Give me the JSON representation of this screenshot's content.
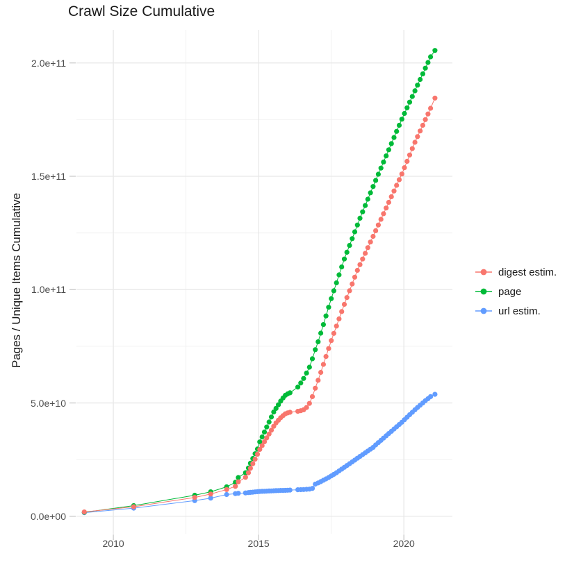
{
  "chart_data": {
    "type": "line",
    "title": "Crawl Size Cumulative",
    "xlabel": "",
    "ylabel": "Pages / Unique Items Cumulative",
    "legend_position": "right",
    "grid": "major-and-minor",
    "value_unit": "1e9 (points stored as [year, billions])",
    "axes": {
      "x_domain": [
        2008.73,
        2021.67
      ],
      "y_domain": [
        -7.7,
        214.6
      ],
      "x_ticks": [
        {
          "label": "2010",
          "value": 2010
        },
        {
          "label": "2015",
          "value": 2015
        },
        {
          "label": "2020",
          "value": 2020
        }
      ],
      "x_minor": [
        2012.5,
        2017.5
      ],
      "y_ticks": [
        {
          "label": "0.0e+00",
          "value": 0
        },
        {
          "label": "5.0e+10",
          "value": 50
        },
        {
          "label": "1.0e+11",
          "value": 100
        },
        {
          "label": "1.5e+11",
          "value": 150
        },
        {
          "label": "2.0e+11",
          "value": 200
        }
      ],
      "y_minor": [
        25,
        75,
        125,
        175
      ]
    },
    "colors": {
      "digest": "#F8766D",
      "page": "#00BA38",
      "url": "#619CFF"
    },
    "series": [
      {
        "name": "digest estim.",
        "color": "#F8766D",
        "points": [
          [
            2009,
            1.9
          ],
          [
            2010.7,
            4.2
          ],
          [
            2012.8,
            8.3
          ],
          [
            2013.35,
            9.8
          ],
          [
            2013.9,
            11.8
          ],
          [
            2014.2,
            13.2
          ],
          [
            2014.3,
            15.2
          ],
          [
            2014.55,
            17.2
          ],
          [
            2014.65,
            19.2
          ],
          [
            2014.72,
            21.2
          ],
          [
            2014.8,
            23.2
          ],
          [
            2014.88,
            25.2
          ],
          [
            2014.96,
            27.4
          ],
          [
            2015.04,
            29.5
          ],
          [
            2015.12,
            31.2
          ],
          [
            2015.2,
            32.9
          ],
          [
            2015.28,
            34.6
          ],
          [
            2015.36,
            36.3
          ],
          [
            2015.44,
            38
          ],
          [
            2015.52,
            39.7
          ],
          [
            2015.6,
            41.2
          ],
          [
            2015.68,
            42.4
          ],
          [
            2015.76,
            43.5
          ],
          [
            2015.84,
            44.4
          ],
          [
            2015.92,
            45.2
          ],
          [
            2016,
            45.6
          ],
          [
            2016.08,
            45.9
          ],
          [
            2016.35,
            46.3
          ],
          [
            2016.45,
            46.6
          ],
          [
            2016.55,
            47
          ],
          [
            2016.65,
            48
          ],
          [
            2016.75,
            49.8
          ],
          [
            2016.85,
            52.8
          ],
          [
            2016.95,
            56.5
          ],
          [
            2017.05,
            60
          ],
          [
            2017.14,
            63.5
          ],
          [
            2017.23,
            67
          ],
          [
            2017.32,
            70.5
          ],
          [
            2017.41,
            74
          ],
          [
            2017.5,
            77.5
          ],
          [
            2017.59,
            80.7
          ],
          [
            2017.68,
            83.9
          ],
          [
            2017.77,
            87.1
          ],
          [
            2017.86,
            90.3
          ],
          [
            2017.95,
            93.5
          ],
          [
            2018.04,
            96.5
          ],
          [
            2018.13,
            99.5
          ],
          [
            2018.22,
            102.5
          ],
          [
            2018.31,
            105.5
          ],
          [
            2018.4,
            108.5
          ],
          [
            2018.49,
            111
          ],
          [
            2018.58,
            113.5
          ],
          [
            2018.67,
            116
          ],
          [
            2018.76,
            118.5
          ],
          [
            2018.85,
            121
          ],
          [
            2018.94,
            123.5
          ],
          [
            2019.03,
            126
          ],
          [
            2019.12,
            128.5
          ],
          [
            2019.21,
            131
          ],
          [
            2019.3,
            133.5
          ],
          [
            2019.39,
            136
          ],
          [
            2019.48,
            138.5
          ],
          [
            2019.57,
            141
          ],
          [
            2019.66,
            143.5
          ],
          [
            2019.75,
            146
          ],
          [
            2019.84,
            148.5
          ],
          [
            2019.93,
            151
          ],
          [
            2020.02,
            153.8
          ],
          [
            2020.11,
            156.6
          ],
          [
            2020.2,
            159.4
          ],
          [
            2020.29,
            162.2
          ],
          [
            2020.38,
            165
          ],
          [
            2020.47,
            167.5
          ],
          [
            2020.56,
            170
          ],
          [
            2020.65,
            172.5
          ],
          [
            2020.74,
            175
          ],
          [
            2020.83,
            177.5
          ],
          [
            2020.92,
            180
          ],
          [
            2021.07,
            184.5
          ]
        ]
      },
      {
        "name": "page",
        "color": "#00BA38",
        "points": [
          [
            2009,
            1.75
          ],
          [
            2010.7,
            4.7
          ],
          [
            2012.8,
            9.3
          ],
          [
            2013.35,
            10.8
          ],
          [
            2013.9,
            13
          ],
          [
            2014.2,
            15
          ],
          [
            2014.3,
            17.1
          ],
          [
            2014.55,
            19.2
          ],
          [
            2014.65,
            21.3
          ],
          [
            2014.72,
            23.4
          ],
          [
            2014.8,
            25.5
          ],
          [
            2014.88,
            27.6
          ],
          [
            2014.96,
            29.7
          ],
          [
            2015.04,
            32.8
          ],
          [
            2015.12,
            35
          ],
          [
            2015.2,
            37.2
          ],
          [
            2015.28,
            39.4
          ],
          [
            2015.36,
            41.6
          ],
          [
            2015.44,
            43.8
          ],
          [
            2015.52,
            46
          ],
          [
            2015.6,
            47.6
          ],
          [
            2015.68,
            49.2
          ],
          [
            2015.76,
            50.8
          ],
          [
            2015.84,
            52.2
          ],
          [
            2015.92,
            53.4
          ],
          [
            2016,
            54
          ],
          [
            2016.08,
            54.5
          ],
          [
            2016.35,
            57
          ],
          [
            2016.45,
            58.8
          ],
          [
            2016.55,
            60.8
          ],
          [
            2016.65,
            63.2
          ],
          [
            2016.75,
            65.8
          ],
          [
            2016.85,
            69.5
          ],
          [
            2016.95,
            73.5
          ],
          [
            2017.05,
            77
          ],
          [
            2017.14,
            80.8
          ],
          [
            2017.23,
            84.6
          ],
          [
            2017.32,
            88.4
          ],
          [
            2017.41,
            92.2
          ],
          [
            2017.5,
            96
          ],
          [
            2017.59,
            99.5
          ],
          [
            2017.68,
            103
          ],
          [
            2017.77,
            106.5
          ],
          [
            2017.86,
            110
          ],
          [
            2017.95,
            113.5
          ],
          [
            2018.04,
            116.5
          ],
          [
            2018.13,
            119.5
          ],
          [
            2018.22,
            122.5
          ],
          [
            2018.31,
            125.5
          ],
          [
            2018.4,
            128.5
          ],
          [
            2018.49,
            131.5
          ],
          [
            2018.58,
            134.3
          ],
          [
            2018.67,
            137.1
          ],
          [
            2018.76,
            139.9
          ],
          [
            2018.85,
            142.7
          ],
          [
            2018.94,
            145.5
          ],
          [
            2019.03,
            148.2
          ],
          [
            2019.12,
            150.9
          ],
          [
            2019.21,
            153.6
          ],
          [
            2019.3,
            156.3
          ],
          [
            2019.39,
            159
          ],
          [
            2019.48,
            161.7
          ],
          [
            2019.57,
            164.4
          ],
          [
            2019.66,
            167.1
          ],
          [
            2019.75,
            169.8
          ],
          [
            2019.84,
            172.5
          ],
          [
            2019.93,
            175.2
          ],
          [
            2020.02,
            177.7
          ],
          [
            2020.11,
            180.2
          ],
          [
            2020.2,
            182.7
          ],
          [
            2020.29,
            185.2
          ],
          [
            2020.38,
            187.7
          ],
          [
            2020.47,
            190.2
          ],
          [
            2020.56,
            192.7
          ],
          [
            2020.65,
            195.2
          ],
          [
            2020.74,
            197.7
          ],
          [
            2020.83,
            200.2
          ],
          [
            2020.92,
            202.7
          ],
          [
            2021.07,
            205.5
          ]
        ]
      },
      {
        "name": "url estim.",
        "color": "#619CFF",
        "points": [
          [
            2009,
            1.6
          ],
          [
            2010.7,
            3.6
          ],
          [
            2012.8,
            6.9
          ],
          [
            2013.35,
            8
          ],
          [
            2013.9,
            9.6
          ],
          [
            2014.2,
            10
          ],
          [
            2014.3,
            10.15
          ],
          [
            2014.55,
            10.3
          ],
          [
            2014.65,
            10.45
          ],
          [
            2014.72,
            10.55
          ],
          [
            2014.8,
            10.65
          ],
          [
            2014.88,
            10.75
          ],
          [
            2014.96,
            10.85
          ],
          [
            2015.04,
            10.95
          ],
          [
            2015.12,
            11
          ],
          [
            2015.2,
            11.05
          ],
          [
            2015.28,
            11.1
          ],
          [
            2015.36,
            11.15
          ],
          [
            2015.44,
            11.2
          ],
          [
            2015.52,
            11.25
          ],
          [
            2015.6,
            11.3
          ],
          [
            2015.68,
            11.35
          ],
          [
            2015.76,
            11.4
          ],
          [
            2015.84,
            11.42
          ],
          [
            2015.92,
            11.45
          ],
          [
            2016,
            11.5
          ],
          [
            2016.08,
            11.55
          ],
          [
            2016.35,
            11.7
          ],
          [
            2016.45,
            11.75
          ],
          [
            2016.55,
            11.8
          ],
          [
            2016.65,
            11.9
          ],
          [
            2016.75,
            12
          ],
          [
            2016.85,
            12.3
          ],
          [
            2016.95,
            14.2
          ],
          [
            2017.05,
            14.7
          ],
          [
            2017.14,
            15.3
          ],
          [
            2017.23,
            15.9
          ],
          [
            2017.32,
            16.5
          ],
          [
            2017.41,
            17.1
          ],
          [
            2017.5,
            17.8
          ],
          [
            2017.59,
            18.5
          ],
          [
            2017.68,
            19.2
          ],
          [
            2017.77,
            20
          ],
          [
            2017.86,
            20.8
          ],
          [
            2017.95,
            21.6
          ],
          [
            2018.04,
            22.4
          ],
          [
            2018.13,
            23.2
          ],
          [
            2018.22,
            24
          ],
          [
            2018.31,
            24.8
          ],
          [
            2018.4,
            25.6
          ],
          [
            2018.49,
            26.4
          ],
          [
            2018.58,
            27.2
          ],
          [
            2018.67,
            28
          ],
          [
            2018.76,
            28.8
          ],
          [
            2018.85,
            29.6
          ],
          [
            2018.94,
            30.4
          ],
          [
            2019.03,
            31.5
          ],
          [
            2019.12,
            32.5
          ],
          [
            2019.21,
            33.5
          ],
          [
            2019.3,
            34.5
          ],
          [
            2019.39,
            35.5
          ],
          [
            2019.48,
            36.5
          ],
          [
            2019.57,
            37.5
          ],
          [
            2019.66,
            38.5
          ],
          [
            2019.75,
            39.5
          ],
          [
            2019.84,
            40.5
          ],
          [
            2019.93,
            41.5
          ],
          [
            2020.02,
            42.6
          ],
          [
            2020.11,
            43.7
          ],
          [
            2020.2,
            44.8
          ],
          [
            2020.29,
            45.9
          ],
          [
            2020.38,
            47
          ],
          [
            2020.47,
            48
          ],
          [
            2020.56,
            49
          ],
          [
            2020.65,
            50
          ],
          [
            2020.74,
            51
          ],
          [
            2020.83,
            51.9
          ],
          [
            2020.92,
            52.8
          ],
          [
            2021.07,
            53.8
          ]
        ]
      }
    ]
  }
}
